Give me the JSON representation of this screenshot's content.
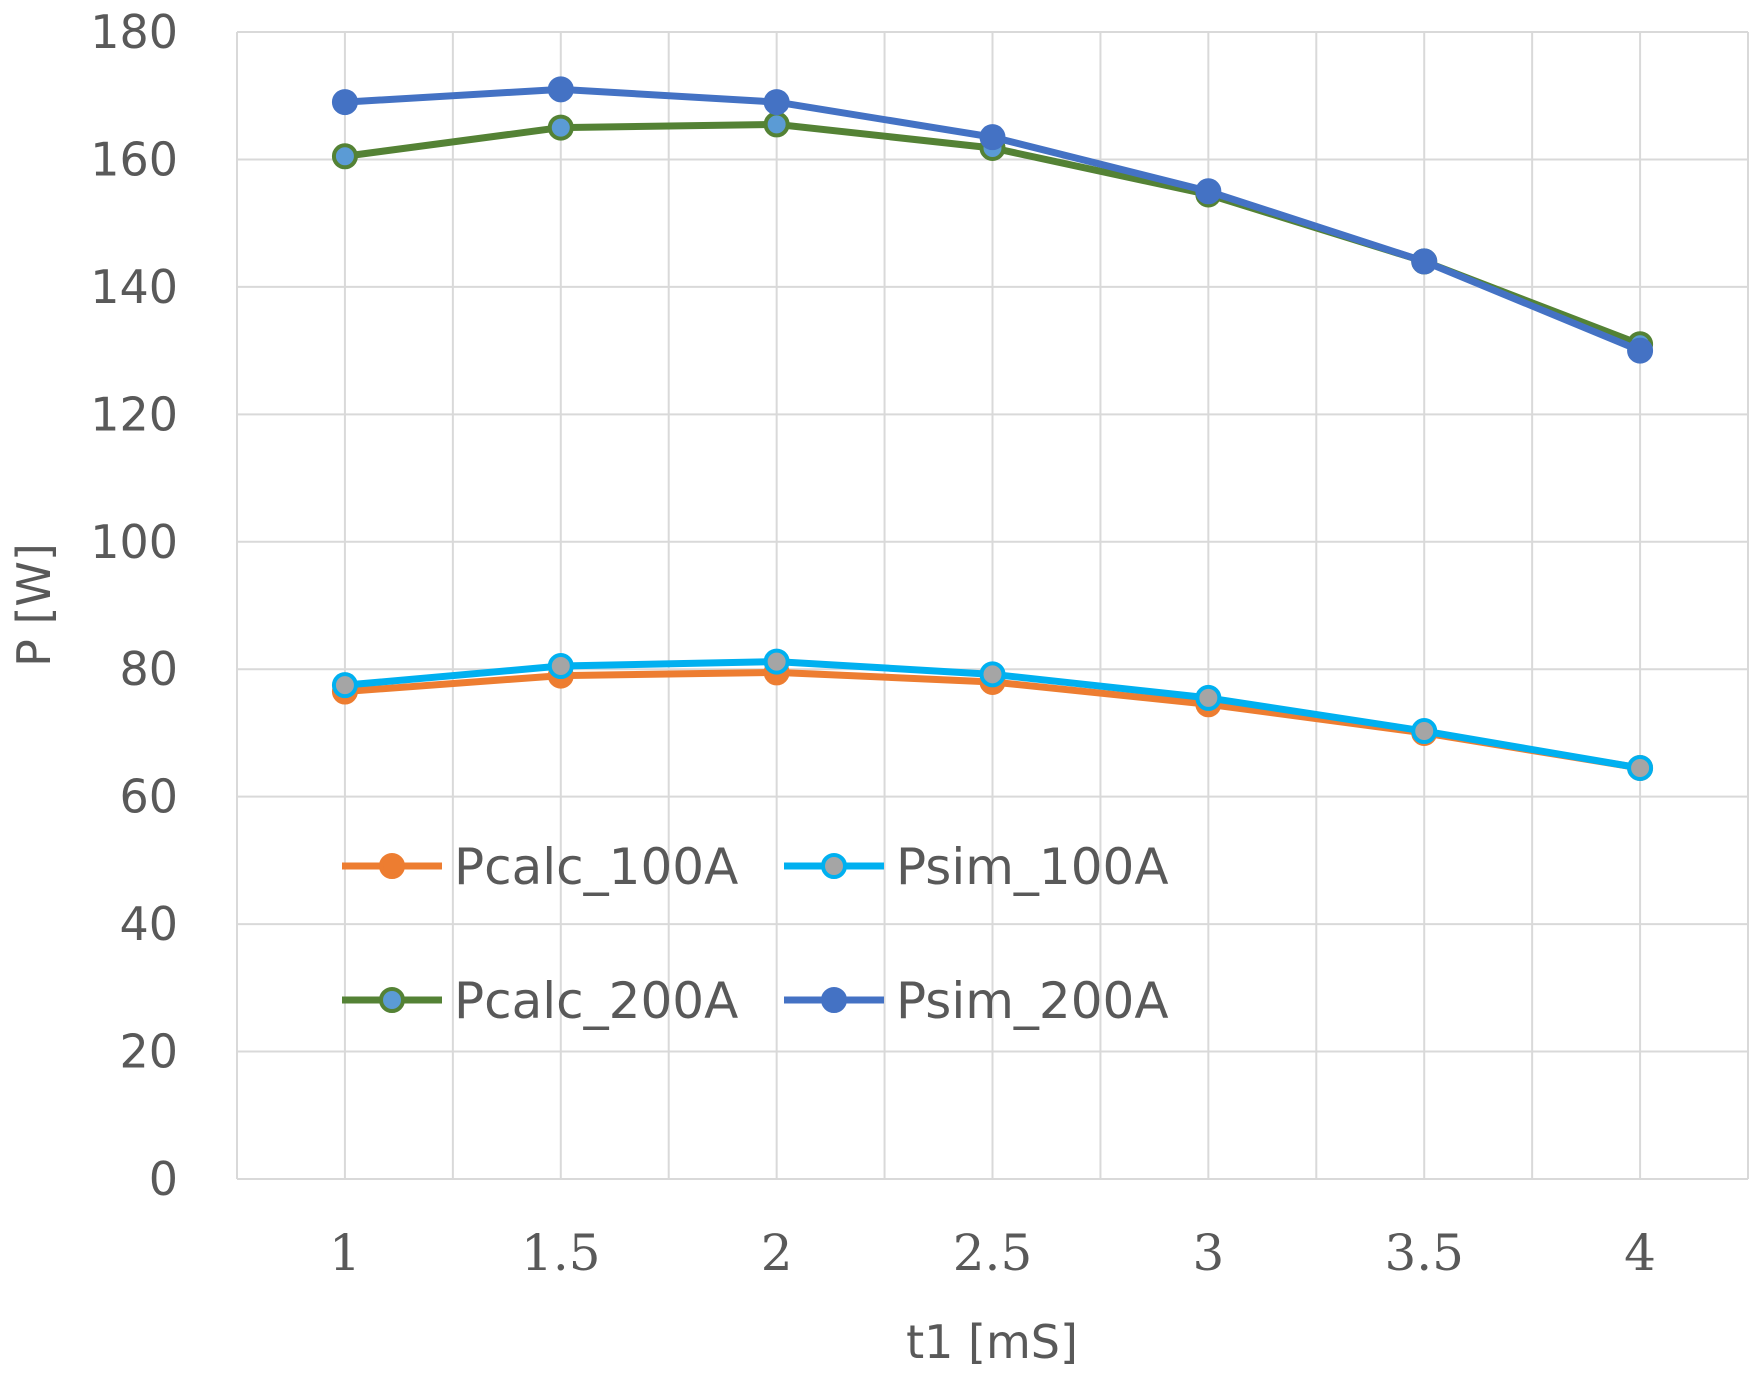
{
  "chart_data": {
    "type": "line",
    "title": "",
    "xlabel": "t1 [mS]",
    "ylabel": "P [W]",
    "ylim": [
      0,
      180
    ],
    "yticks": [
      0,
      20,
      40,
      60,
      80,
      100,
      120,
      140,
      160,
      180
    ],
    "grid": true,
    "x": [
      1,
      1.5,
      2,
      2.5,
      3,
      3.5,
      4
    ],
    "xtick_labels": [
      "1",
      "1.5",
      "2",
      "2.5",
      "3",
      "3.5",
      "4"
    ],
    "legend_position": "inside-left-middle",
    "series": [
      {
        "name": "Pcalc_100A",
        "color": "#ED7D31",
        "marker_color": "#ED7D31",
        "values": [
          76.5,
          79.0,
          79.5,
          78.0,
          74.5,
          70.0,
          64.5
        ]
      },
      {
        "name": "Psim_100A",
        "color": "#00B0F0",
        "marker_color": "#A5A5A5",
        "values": [
          77.5,
          80.5,
          81.2,
          79.2,
          75.5,
          70.3,
          64.5
        ]
      },
      {
        "name": "Pcalc_200A",
        "color": "#548235",
        "marker_color": "#5B9BD5",
        "values": [
          160.5,
          165.0,
          165.5,
          161.8,
          154.5,
          144.0,
          131.0
        ]
      },
      {
        "name": "Psim_200A",
        "color": "#4472C4",
        "marker_color": "#4472C4",
        "values": [
          169.0,
          171.0,
          169.0,
          163.5,
          155.0,
          144.0,
          130.0
        ]
      }
    ]
  }
}
